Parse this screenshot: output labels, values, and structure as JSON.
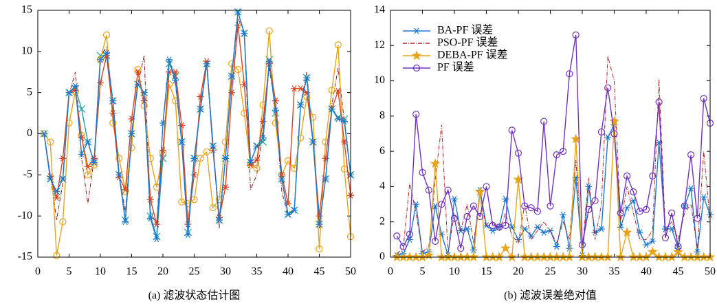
{
  "chart_data": [
    {
      "type": "line",
      "caption": "(a) 滤波状态估计图",
      "x": [
        1,
        2,
        3,
        4,
        5,
        6,
        7,
        8,
        9,
        10,
        11,
        12,
        13,
        14,
        15,
        16,
        17,
        18,
        19,
        20,
        21,
        22,
        23,
        24,
        25,
        26,
        27,
        28,
        29,
        30,
        31,
        32,
        33,
        34,
        35,
        36,
        37,
        38,
        39,
        40,
        41,
        42,
        43,
        44,
        45,
        46,
        47,
        48,
        49,
        50
      ],
      "xlim": [
        0,
        50
      ],
      "xticks": [
        0,
        5,
        10,
        15,
        20,
        25,
        30,
        35,
        40,
        45,
        50
      ],
      "ylim": [
        -15,
        15
      ],
      "yticks": [
        -15,
        -10,
        -5,
        0,
        5,
        10,
        15
      ],
      "series": [
        {
          "color": "#8b1a1a",
          "marker": "none",
          "dash": true,
          "values": [
            0,
            -5,
            -10.5,
            -6,
            4.8,
            7.5,
            -3,
            -8.5,
            -3,
            9.5,
            10.5,
            4,
            -5,
            -9.5,
            0,
            6,
            9.5,
            -9.5,
            -11,
            1,
            9,
            6,
            -1,
            -11,
            -3,
            3.5,
            8.5,
            -1,
            -11.5,
            -3,
            7,
            14,
            12.5,
            -6.8,
            -5,
            0.5,
            8,
            3,
            -7,
            -10,
            -9.5,
            3.5,
            7.5,
            -1,
            -11.5,
            -5.5,
            3.5,
            8,
            1.5,
            -5
          ]
        },
        {
          "color": "#20a0a0",
          "marker": "x",
          "dash": false,
          "values": [
            0,
            -5.5,
            -7,
            -5.5,
            5,
            5.5,
            3,
            -1,
            -3.5,
            9.5,
            9.5,
            4,
            -5,
            -10.5,
            0,
            6,
            5,
            -10,
            -12.5,
            -3,
            8.5,
            7,
            -1,
            -12,
            -3,
            3,
            8.5,
            -1.5,
            -10.5,
            -3,
            7,
            14.8,
            12.2,
            -3.5,
            -1.5,
            -1,
            9,
            2.5,
            -5.5,
            -9.8,
            -9.3,
            3.5,
            6.8,
            -1,
            -11,
            -5.5,
            3,
            2,
            1.8,
            -5
          ]
        },
        {
          "color": "#e8a317",
          "marker": "circle",
          "dash": false,
          "values": [
            0,
            -1,
            -14.8,
            -10.7,
            1.3,
            5.1,
            -0.2,
            -5,
            -3.8,
            9,
            12,
            1.3,
            -3,
            -7,
            -1.7,
            7.8,
            3.4,
            -3,
            -6.5,
            -2.3,
            6,
            4,
            -8.3,
            -8.5,
            -8,
            -3,
            -2.2,
            -9,
            -8,
            -1,
            8.5,
            7.8,
            2.5,
            -3.8,
            -4.2,
            3.5,
            12.5,
            1.3,
            -5,
            -3.3,
            -4.2,
            -0.5,
            4.5,
            2,
            -14,
            -1,
            5.3,
            10.8,
            -4.3,
            -12.5
          ]
        },
        {
          "color": "#e0401a",
          "marker": "asterisk",
          "dash": false,
          "values": [
            0,
            -5.2,
            -7.8,
            -3,
            5,
            5.3,
            -0.5,
            -4,
            -3,
            6.2,
            9.5,
            2.5,
            -5.3,
            -6.8,
            1.8,
            7.5,
            4,
            -8,
            -11,
            -2,
            7.5,
            7.5,
            1,
            -11,
            -5,
            4.5,
            8.8,
            -2,
            -10.2,
            -6.5,
            5,
            13.2,
            6,
            -3.8,
            -3.2,
            1.5,
            8.5,
            4,
            -5,
            -8.5,
            5.5,
            5.5,
            5,
            -1,
            -10,
            -3,
            3,
            5.2,
            -1,
            -7.5
          ]
        },
        {
          "color": "#1f78d0",
          "marker": "asterisk",
          "dash": false,
          "values": [
            0,
            -5.5,
            -7,
            -5.5,
            5,
            5.8,
            -2.5,
            -1,
            -3.5,
            9,
            9.8,
            4,
            -5,
            -10.7,
            0,
            6,
            5,
            -10.3,
            -12.8,
            1.3,
            9,
            6.5,
            -1,
            -12.3,
            -3,
            3,
            8.5,
            -1.5,
            -10.5,
            -3,
            7,
            14.8,
            12.2,
            -3.5,
            -1.5,
            -0.5,
            8.8,
            2.8,
            -5.5,
            -9.8,
            -9.3,
            3.5,
            6.8,
            -1,
            -11,
            -5.5,
            3,
            1.8,
            1.5,
            -5
          ]
        }
      ]
    },
    {
      "type": "line",
      "caption": "(b) 滤波误差绝对值",
      "legend": "upper left",
      "x": [
        1,
        2,
        3,
        4,
        5,
        6,
        7,
        8,
        9,
        10,
        11,
        12,
        13,
        14,
        15,
        16,
        17,
        18,
        19,
        20,
        21,
        22,
        23,
        24,
        25,
        26,
        27,
        28,
        29,
        30,
        31,
        32,
        33,
        34,
        35,
        36,
        37,
        38,
        39,
        40,
        41,
        42,
        43,
        44,
        45,
        46,
        47,
        48,
        49,
        50
      ],
      "xlim": [
        0,
        50
      ],
      "xticks": [
        0,
        5,
        10,
        15,
        20,
        25,
        30,
        35,
        40,
        45,
        50
      ],
      "ylim": [
        0,
        14
      ],
      "yticks": [
        0,
        2,
        4,
        6,
        8,
        10,
        12,
        14
      ],
      "series": [
        {
          "name": "BA-PF 误差",
          "color": "#1f78d0",
          "marker": "asterisk",
          "dash": false,
          "values": [
            0.1,
            0.2,
            1.0,
            3.0,
            0.2,
            0.3,
            2.9,
            1.3,
            0.1,
            3.3,
            1.5,
            1.6,
            0.4,
            3.8,
            1.8,
            1.5,
            1.7,
            3.3,
            1.7,
            1.0,
            1.6,
            1.2,
            1.7,
            1.4,
            1.5,
            0.6,
            2.4,
            0.5,
            4.5,
            0.1,
            4.0,
            1.4,
            1.6,
            6.8,
            7.5,
            1.7,
            2.8,
            3.2,
            1.4,
            0.7,
            0.9,
            6.5,
            1.6,
            1.6,
            0.5,
            2.9,
            3.9,
            0.3,
            3.4,
            2.4
          ]
        },
        {
          "name": "PSO-PF 误差",
          "color": "#b22222",
          "marker": "none",
          "dash": true,
          "values": [
            0.2,
            0.5,
            4.2,
            2.5,
            0.3,
            0.6,
            4.4,
            7.5,
            0.2,
            2.5,
            1.5,
            3.0,
            0.8,
            3.5,
            1.7,
            2.0,
            1.5,
            2.5,
            1.2,
            0.8,
            3.0,
            1.0,
            1.5,
            2.0,
            1.5,
            0.8,
            2.0,
            1.0,
            5.5,
            0.3,
            4.5,
            1.0,
            3.0,
            11.4,
            10.0,
            2.0,
            4.0,
            2.5,
            1.0,
            1.0,
            1.5,
            10.1,
            1.5,
            2.0,
            1.0,
            2.5,
            3.0,
            0.5,
            6.0,
            2.0
          ]
        },
        {
          "name": "DEBA-PF 误差",
          "color": "#e8a317",
          "marker": "star",
          "dash": false,
          "values": [
            0,
            0,
            0,
            0,
            0,
            0.1,
            5.3,
            0,
            0,
            0,
            0,
            0,
            0,
            3.7,
            0,
            0,
            0,
            0.5,
            0,
            4.4,
            0,
            0,
            0,
            0,
            0,
            0,
            0,
            0,
            6.7,
            0,
            0,
            0,
            0,
            0,
            7.7,
            0,
            1.4,
            0,
            0,
            0,
            0.3,
            0,
            0,
            0,
            0.3,
            0,
            0,
            0,
            0,
            0
          ]
        },
        {
          "name": "PF 误差",
          "color": "#7030c0",
          "marker": "circle",
          "dash": false,
          "values": [
            1.2,
            0.6,
            1.3,
            8.1,
            4.8,
            3.8,
            0.9,
            3.0,
            3.8,
            2.2,
            0.5,
            2.3,
            2.9,
            2.3,
            4.0,
            1.8,
            1.7,
            1.8,
            7.2,
            5.9,
            2.9,
            2.8,
            2.6,
            7.7,
            2.9,
            5.8,
            6.0,
            10.4,
            12.6,
            0.7,
            2.7,
            3.2,
            7.1,
            9.6,
            7.0,
            2.5,
            4.6,
            3.7,
            2.6,
            2.7,
            4.6,
            8.8,
            1.1,
            2.5,
            0.6,
            2.9,
            5.8,
            2.2,
            9.0,
            7.6
          ]
        }
      ]
    }
  ]
}
